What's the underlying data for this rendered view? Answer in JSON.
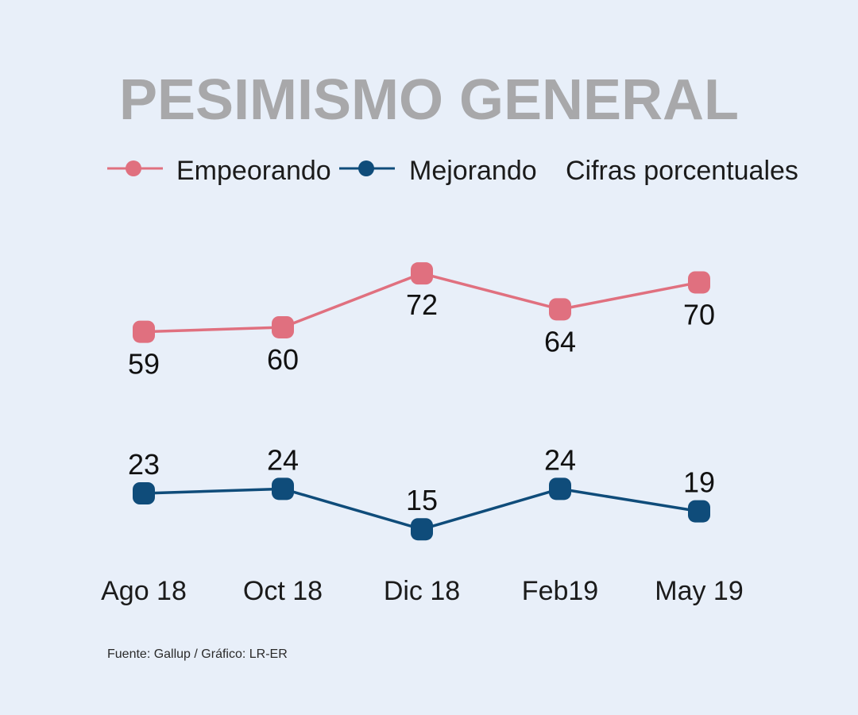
{
  "chart_data": {
    "type": "line",
    "title": "PESIMISMO GENERAL",
    "note": "Cifras porcentuales",
    "categories": [
      "Ago 18",
      "Oct 18",
      "Dic 18",
      "Feb19",
      "May 19"
    ],
    "series": [
      {
        "name": "Empeorando",
        "color": "#e0707f",
        "values": [
          59,
          60,
          72,
          64,
          70
        ]
      },
      {
        "name": "Mejorando",
        "color": "#0f4c7a",
        "values": [
          23,
          24,
          15,
          24,
          19
        ]
      }
    ],
    "ylim": [
      0,
      100
    ],
    "grid": false,
    "legend_position": "top",
    "source": "Fuente: Gallup / Gráfico: LR-ER"
  }
}
